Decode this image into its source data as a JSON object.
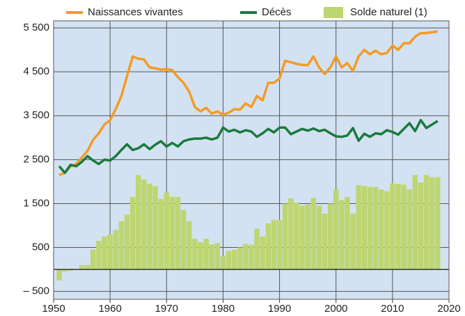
{
  "chart_data": {
    "type": "combo",
    "x": [
      1951,
      1952,
      1953,
      1954,
      1955,
      1956,
      1957,
      1958,
      1959,
      1960,
      1961,
      1962,
      1963,
      1964,
      1965,
      1966,
      1967,
      1968,
      1969,
      1970,
      1971,
      1972,
      1973,
      1974,
      1975,
      1976,
      1977,
      1978,
      1979,
      1980,
      1981,
      1982,
      1983,
      1984,
      1985,
      1986,
      1987,
      1988,
      1989,
      1990,
      1991,
      1992,
      1993,
      1994,
      1995,
      1996,
      1997,
      1998,
      1999,
      2000,
      2001,
      2002,
      2003,
      2004,
      2005,
      2006,
      2007,
      2008,
      2009,
      2010,
      2011,
      2012,
      2013,
      2014,
      2015,
      2016,
      2017,
      2018
    ],
    "series": [
      {
        "name": "Solde naturel (1)",
        "type": "bar",
        "color": "#bdd670",
        "values": [
          -250,
          -50,
          -30,
          0,
          100,
          100,
          450,
          650,
          750,
          800,
          900,
          1100,
          1250,
          1650,
          2150,
          2050,
          1950,
          1900,
          1600,
          1750,
          1650,
          1650,
          1350,
          1100,
          700,
          620,
          700,
          570,
          600,
          300,
          420,
          450,
          500,
          580,
          560,
          930,
          750,
          1050,
          1130,
          1130,
          1500,
          1620,
          1520,
          1450,
          1480,
          1630,
          1450,
          1270,
          1500,
          1820,
          1580,
          1650,
          1270,
          1920,
          1900,
          1880,
          1880,
          1820,
          1780,
          1960,
          1950,
          1930,
          1820,
          2150,
          1980,
          2150,
          2100,
          2100
        ]
      },
      {
        "name": "Naissances vivantes",
        "type": "line",
        "color": "#f39b27",
        "values": [
          2150,
          2200,
          2350,
          2400,
          2550,
          2700,
          2950,
          3100,
          3300,
          3400,
          3650,
          3950,
          4400,
          4850,
          4800,
          4780,
          4600,
          4580,
          4550,
          4560,
          4540,
          4380,
          4250,
          4050,
          3700,
          3600,
          3680,
          3550,
          3600,
          3520,
          3570,
          3650,
          3640,
          3780,
          3700,
          3950,
          3850,
          4250,
          4250,
          4350,
          4750,
          4720,
          4680,
          4660,
          4650,
          4850,
          4600,
          4450,
          4600,
          4850,
          4600,
          4700,
          4520,
          4850,
          5000,
          4900,
          4980,
          4900,
          4930,
          5100,
          5000,
          5150,
          5150,
          5300,
          5380,
          5380,
          5400,
          5420
        ]
      },
      {
        "name": "Décès",
        "type": "line",
        "color": "#1a7a3c",
        "values": [
          2350,
          2200,
          2380,
          2350,
          2450,
          2580,
          2480,
          2400,
          2500,
          2480,
          2580,
          2720,
          2850,
          2720,
          2760,
          2850,
          2740,
          2840,
          2920,
          2800,
          2880,
          2800,
          2920,
          2960,
          2980,
          2980,
          3000,
          2960,
          3000,
          3230,
          3140,
          3180,
          3120,
          3170,
          3140,
          3020,
          3100,
          3200,
          3120,
          3230,
          3230,
          3080,
          3140,
          3200,
          3160,
          3210,
          3150,
          3180,
          3100,
          3030,
          3020,
          3050,
          3220,
          2930,
          3090,
          3020,
          3100,
          3080,
          3170,
          3130,
          3070,
          3200,
          3330,
          3150,
          3400,
          3220,
          3300,
          3380
        ]
      }
    ],
    "legend_order": [
      1,
      2,
      0
    ],
    "xlim": [
      1950,
      2020
    ],
    "xticks": [
      1950,
      1960,
      1970,
      1980,
      1990,
      2000,
      2010,
      2020
    ],
    "ylim": [
      -680,
      5660
    ],
    "yticks": [
      {
        "value": 5500,
        "label": "5 500"
      },
      {
        "value": 4500,
        "label": "4 500"
      },
      {
        "value": 3500,
        "label": "3 500"
      },
      {
        "value": 2500,
        "label": "2 500"
      },
      {
        "value": 1500,
        "label": "1 500"
      },
      500,
      {
        "value": -500,
        "label": "– 500"
      }
    ],
    "grid": true,
    "background": "#d3e2f2"
  }
}
